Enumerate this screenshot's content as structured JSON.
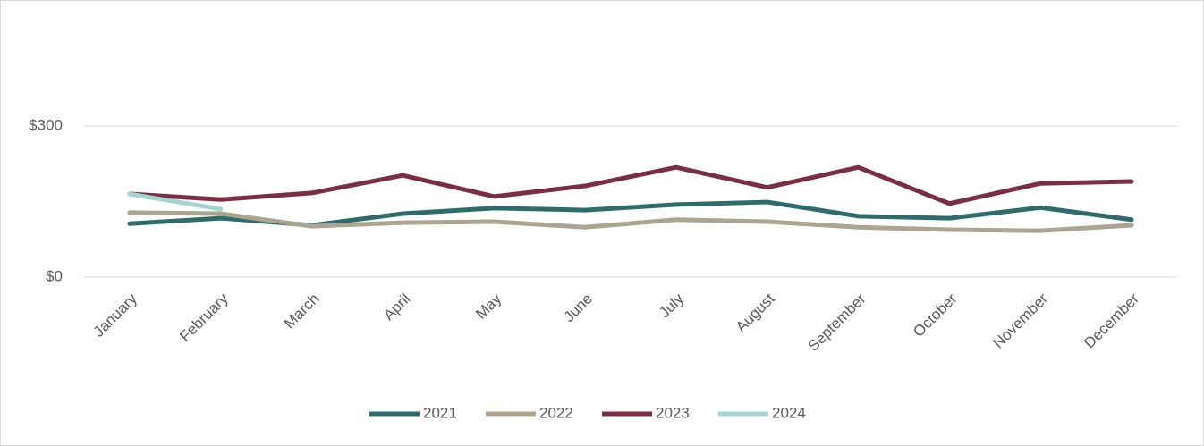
{
  "chart_data": {
    "type": "line",
    "categories": [
      "January",
      "February",
      "March",
      "April",
      "May",
      "June",
      "July",
      "August",
      "September",
      "October",
      "November",
      "December"
    ],
    "series": [
      {
        "name": "2021",
        "color": "#2e6b6b",
        "values": [
          106,
          117,
          103,
          126,
          137,
          133,
          144,
          149,
          121,
          117,
          138,
          114
        ]
      },
      {
        "name": "2022",
        "color": "#aba58f",
        "values": [
          128,
          126,
          101,
          108,
          110,
          99,
          114,
          110,
          99,
          94,
          92,
          103
        ]
      },
      {
        "name": "2023",
        "color": "#7a2e43",
        "values": [
          165,
          154,
          167,
          202,
          160,
          181,
          218,
          178,
          218,
          146,
          186,
          190
        ]
      },
      {
        "name": "2024",
        "color": "#a3d4d0",
        "values": [
          165,
          135,
          null,
          null,
          null,
          null,
          null,
          null,
          null,
          null,
          null,
          null
        ]
      }
    ],
    "ylim": [
      0,
      450
    ],
    "yticks": [
      {
        "value": 0,
        "label": "$0"
      },
      {
        "value": 300,
        "label": "$300"
      }
    ],
    "grid": true,
    "legend": "bottom"
  }
}
